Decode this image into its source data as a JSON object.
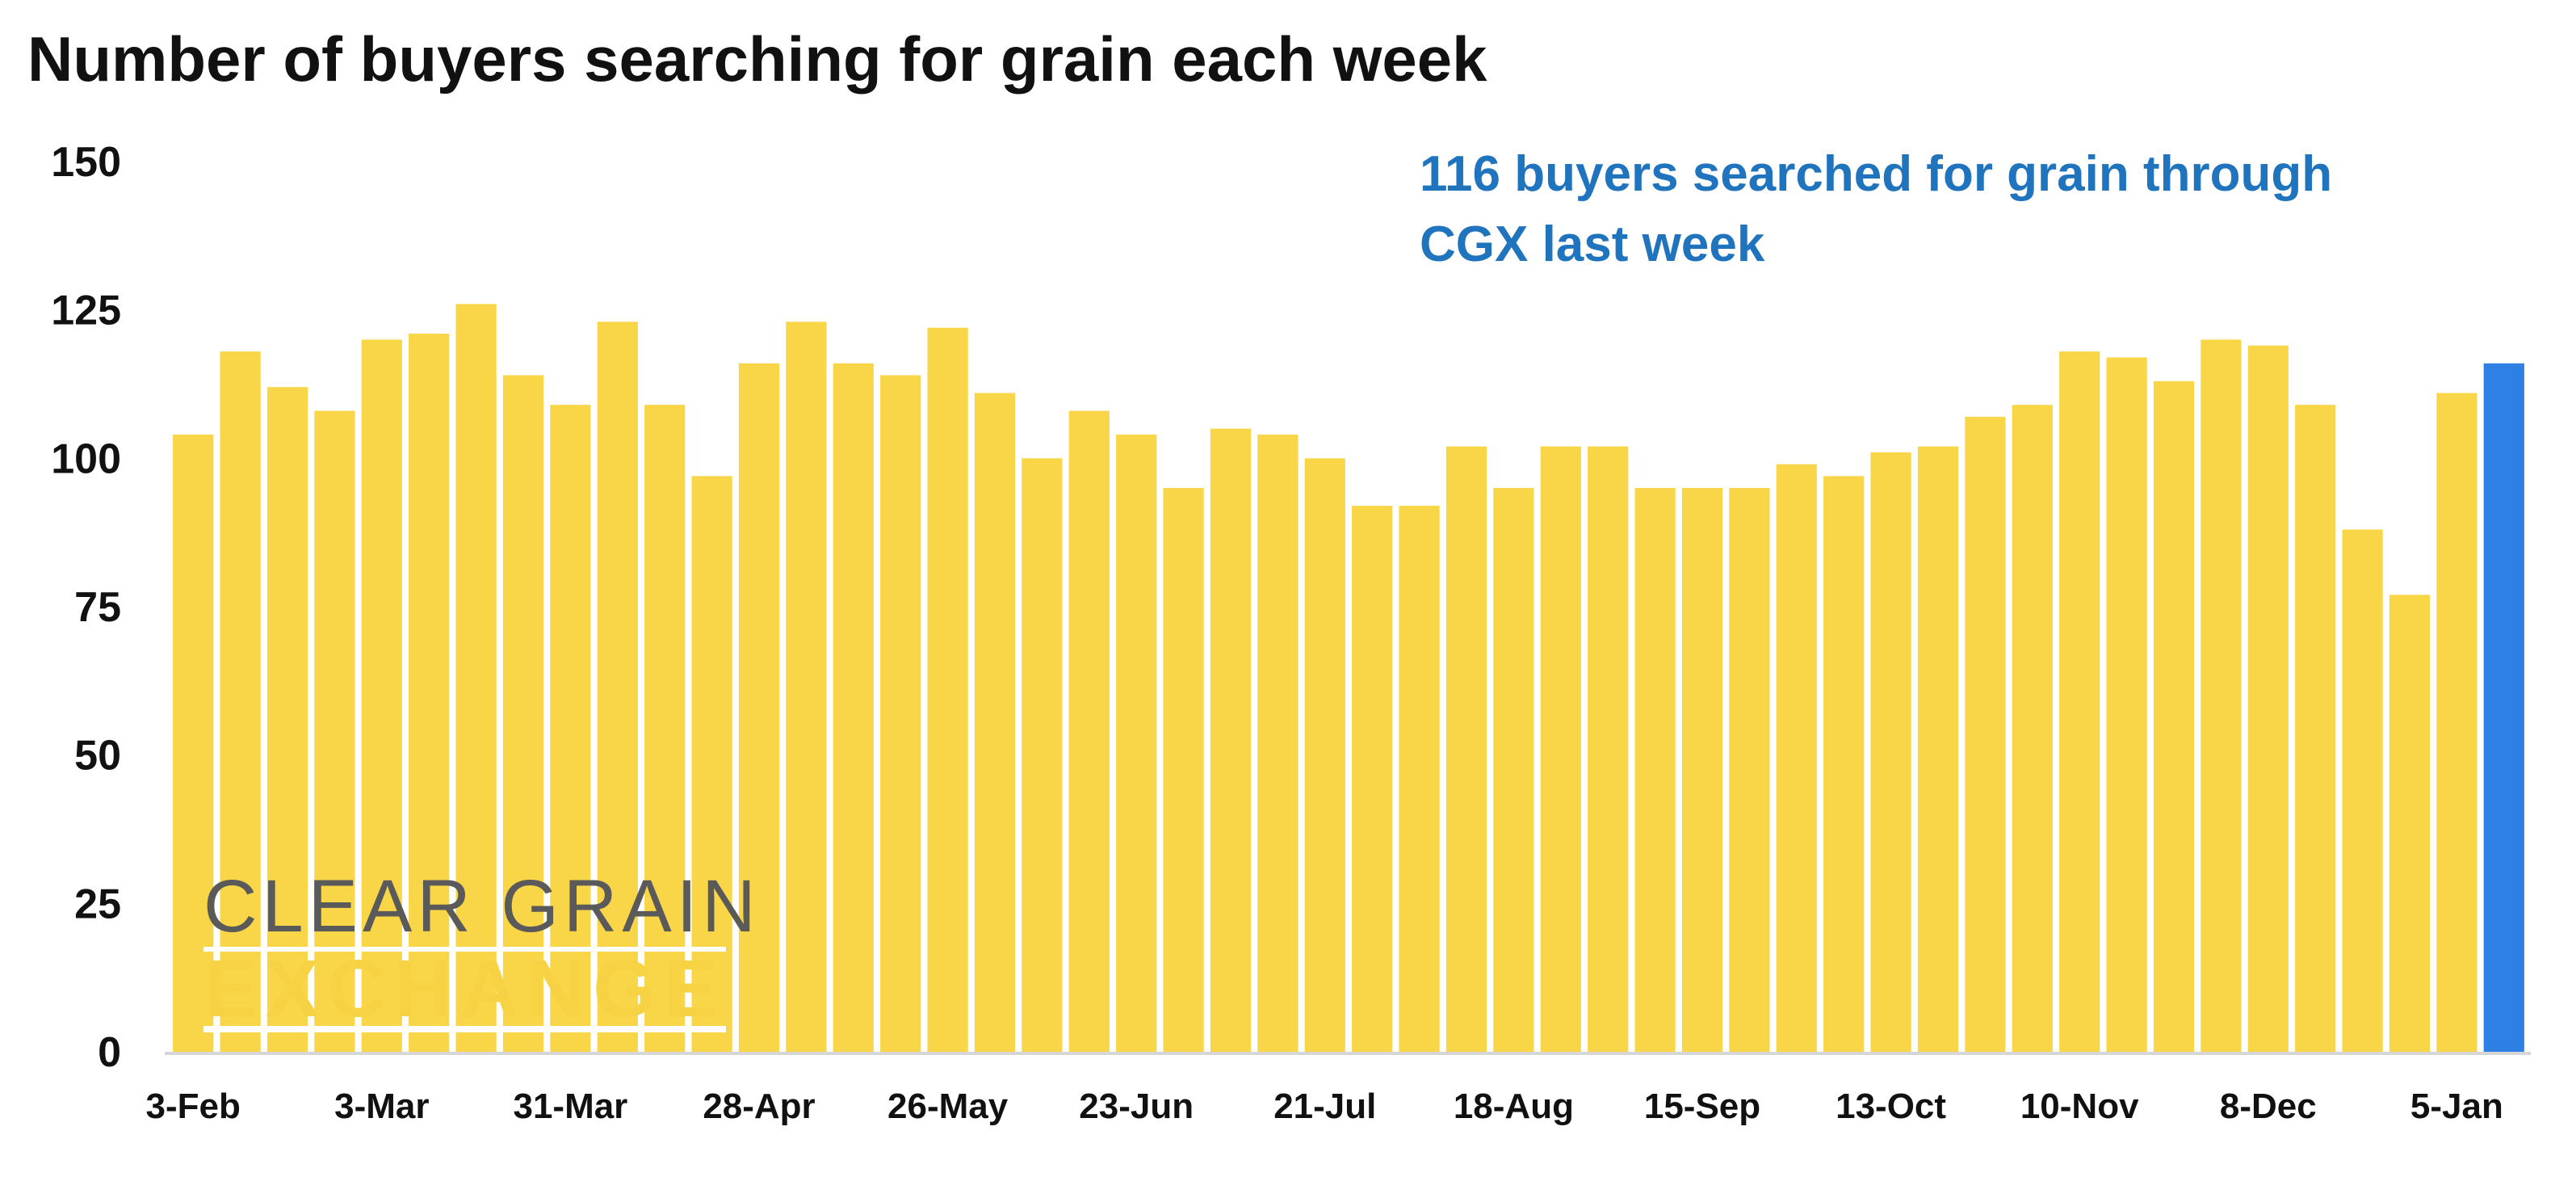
{
  "chart_data": {
    "type": "bar",
    "title": "Number of buyers searching for grain each week",
    "xlabel": "",
    "ylabel": "",
    "ylim": [
      0,
      150
    ],
    "yticks": [
      0,
      25,
      50,
      75,
      100,
      125,
      150
    ],
    "x_tick_labels": [
      "3-Feb",
      "3-Mar",
      "31-Mar",
      "28-Apr",
      "26-May",
      "23-Jun",
      "21-Jul",
      "18-Aug",
      "15-Sep",
      "13-Oct",
      "10-Nov",
      "8-Dec",
      "5-Jan"
    ],
    "values": [
      104,
      118,
      112,
      108,
      120,
      121,
      126,
      114,
      109,
      123,
      109,
      97,
      116,
      123,
      116,
      114,
      122,
      111,
      100,
      108,
      104,
      95,
      105,
      104,
      100,
      92,
      92,
      102,
      95,
      102,
      102,
      95,
      95,
      95,
      99,
      97,
      101,
      102,
      107,
      109,
      118,
      117,
      113,
      120,
      119,
      109,
      88,
      77,
      111,
      116
    ],
    "highlight_index": 49,
    "colors": {
      "bar": "#f9d548",
      "highlight": "#2f80e4",
      "annotation": "#1f74bd"
    },
    "annotation": {
      "line1": "116 buyers searched for grain through",
      "line2": "CGX last week"
    },
    "grid": false,
    "legend": "none"
  },
  "logo": {
    "line1": "CLEAR GRAIN",
    "line2": "EXCHANGE"
  }
}
